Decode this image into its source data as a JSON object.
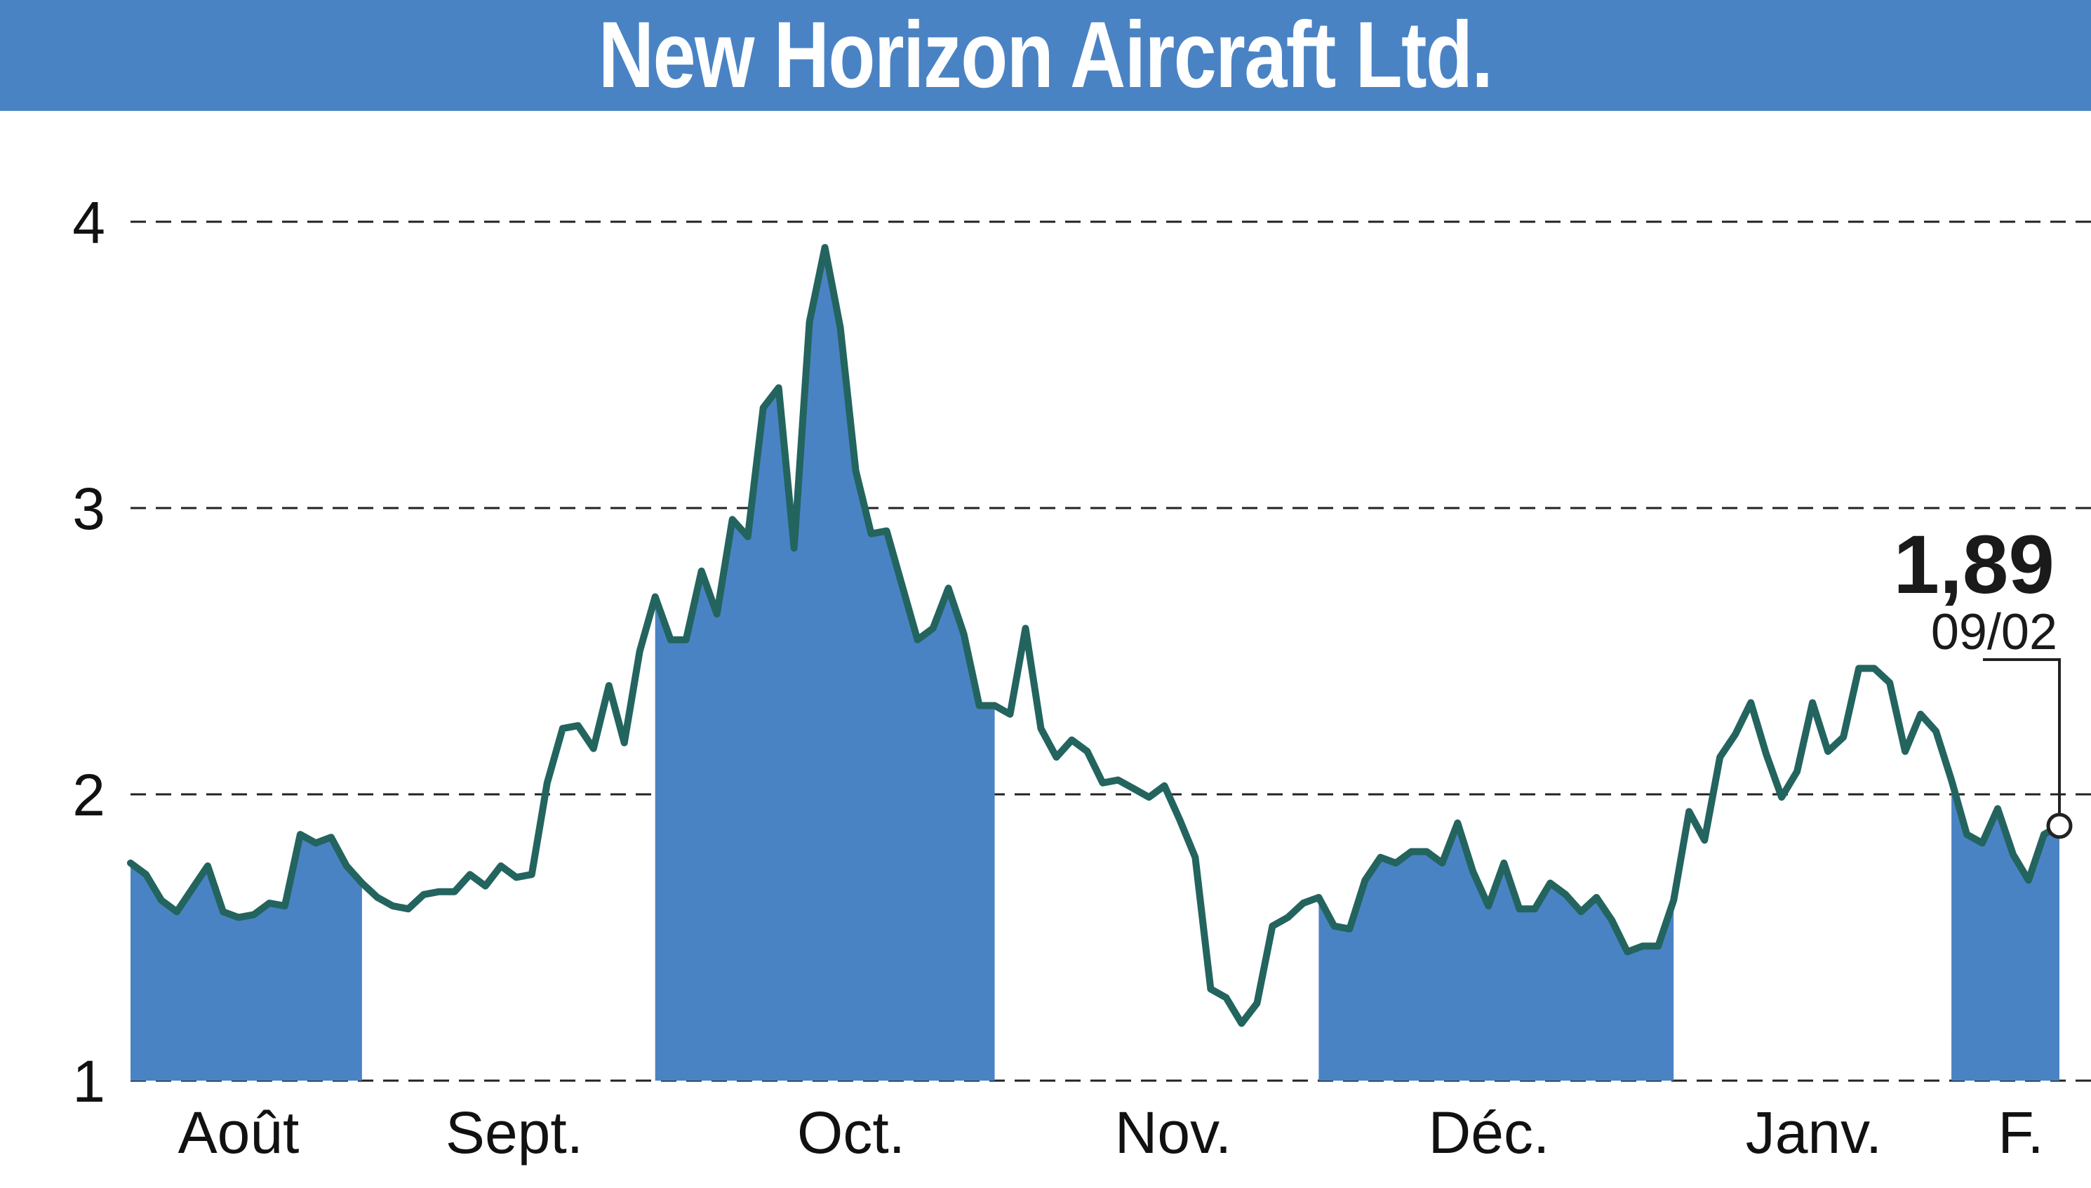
{
  "chart_data": {
    "type": "line",
    "title": "New Horizon Aircraft Ltd.",
    "xlabel": "",
    "ylabel": "",
    "ylim": [
      1,
      4.2
    ],
    "yticks": [
      1,
      2,
      3,
      4
    ],
    "ytick_labels": [
      "1",
      "2",
      "3",
      "4"
    ],
    "months": [
      "Août",
      "Sept.",
      "Oct.",
      "Nov.",
      "Déc.",
      "Janv.",
      "F."
    ],
    "grid": "horizontal dashed",
    "legend": "none",
    "colors": {
      "header": "#4a83c4",
      "line": "#23645f",
      "fill": "#4a83c4"
    },
    "last_value_label": "1,89",
    "last_date_label": "09/02",
    "series": [
      {
        "values": [
          1.76,
          1.72,
          1.63,
          1.59,
          1.67,
          1.75,
          1.59,
          1.57,
          1.58,
          1.62,
          1.61,
          1.86,
          1.83,
          1.85,
          1.75,
          1.69,
          1.64,
          1.61,
          1.6,
          1.65,
          1.66,
          1.66,
          1.72,
          1.68,
          1.75,
          1.71,
          1.72,
          2.04,
          2.23,
          2.24,
          2.16,
          2.38,
          2.18,
          2.5,
          2.69,
          2.54,
          2.54,
          2.78,
          2.63,
          2.96,
          2.9,
          3.35,
          3.42,
          2.86,
          3.65,
          3.91,
          3.63,
          3.13,
          2.91,
          2.92,
          2.73,
          2.54,
          2.58,
          2.72,
          2.56,
          2.31,
          2.31,
          2.28,
          2.58,
          2.23,
          2.13,
          2.19,
          2.15,
          2.04,
          2.05,
          2.02,
          1.99,
          2.03,
          1.91,
          1.78,
          1.32,
          1.29,
          1.2,
          1.27,
          1.54,
          1.57,
          1.62,
          1.64,
          1.54,
          1.53,
          1.7,
          1.78,
          1.76,
          1.8,
          1.8,
          1.76,
          1.9,
          1.73,
          1.61,
          1.76,
          1.6,
          1.6,
          1.69,
          1.65,
          1.59,
          1.64,
          1.56,
          1.45,
          1.47,
          1.47,
          1.63,
          1.94,
          1.84,
          2.13,
          2.21,
          2.32,
          2.14,
          1.99,
          2.08,
          2.32,
          2.15,
          2.2,
          2.44,
          2.44,
          2.39,
          2.15,
          2.28,
          2.22,
          2.05,
          1.86,
          1.83,
          1.95,
          1.79,
          1.7,
          1.86,
          1.89
        ]
      }
    ]
  }
}
